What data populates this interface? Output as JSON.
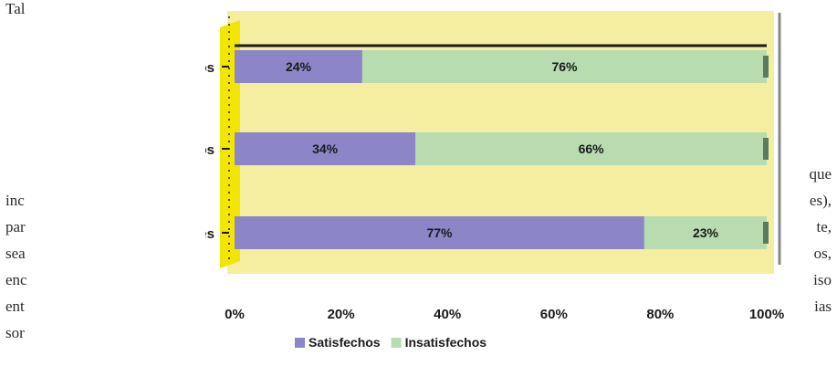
{
  "background_text": {
    "top_left": "Tal",
    "left_lines": [
      "inc",
      "par",
      "sea",
      "enc",
      "ent",
      "sor"
    ],
    "right_lines": [
      "que",
      "es),",
      "te,",
      "os,",
      "iso",
      "ias"
    ]
  },
  "colors": {
    "plot_bg": "#f5eda0",
    "wall": "#f2e500",
    "series1": "#8c86c8",
    "series2": "#b8dcb0",
    "frame": "#1a1a1a",
    "text": "#1a1a1a"
  },
  "chart_data": {
    "type": "bar",
    "orientation": "horizontal",
    "stacked": true,
    "percent": true,
    "categories": [
      "Ciudadanos",
      "Universitarios",
      "Estudiantes"
    ],
    "series": [
      {
        "name": "Satisfechos",
        "values": [
          24,
          34,
          77
        ]
      },
      {
        "name": "Insatisfechos",
        "values": [
          76,
          66,
          23
        ]
      }
    ],
    "data_labels": [
      [
        "24%",
        "76%"
      ],
      [
        "34%",
        "66%"
      ],
      [
        "77%",
        "23%"
      ]
    ],
    "xticks": [
      "0%",
      "20%",
      "40%",
      "60%",
      "80%",
      "100%"
    ],
    "xlim": [
      0,
      100
    ],
    "legend_position": "bottom",
    "grid": false
  }
}
